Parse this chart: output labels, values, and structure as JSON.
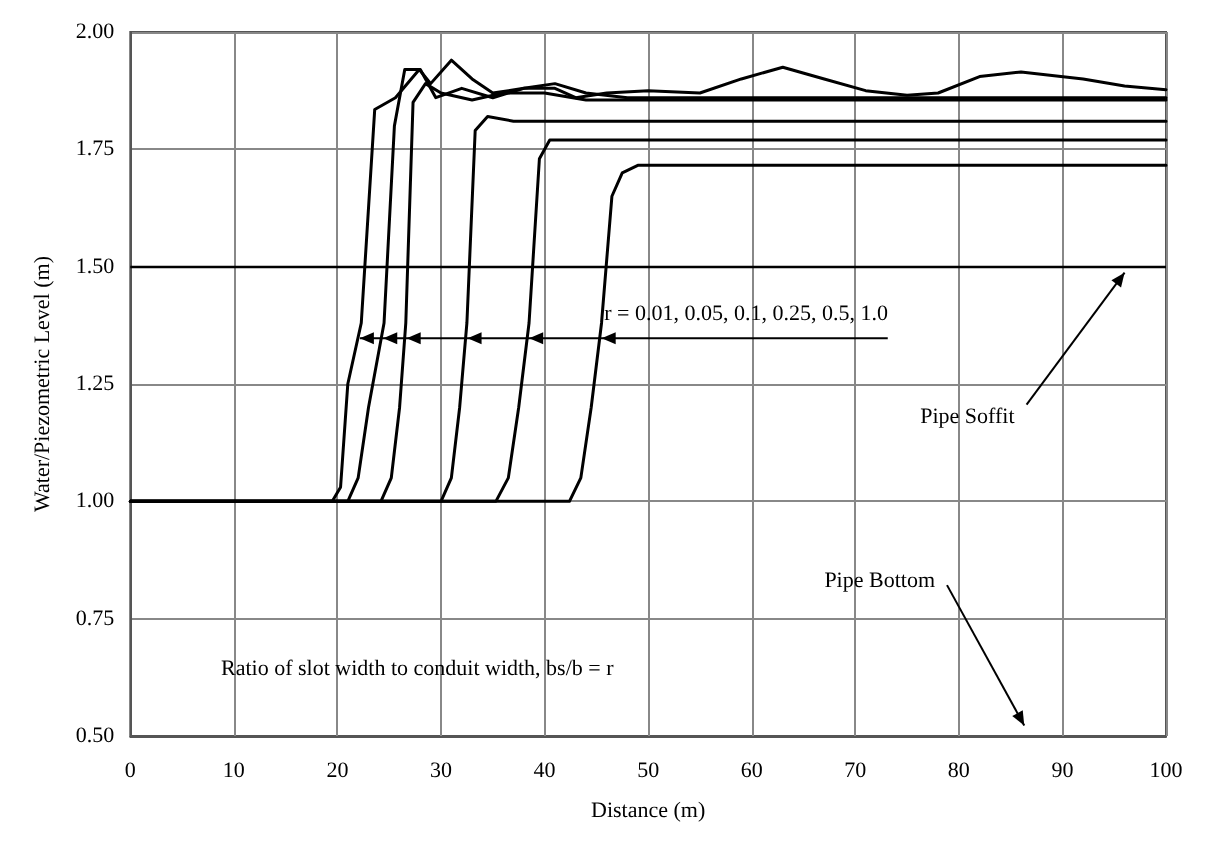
{
  "chart_data": {
    "type": "line",
    "xlabel": "Distance (m)",
    "ylabel": "Water/Piezometric Level (m)",
    "xlim": [
      0,
      100
    ],
    "xticks": [
      0,
      10,
      20,
      30,
      40,
      50,
      60,
      70,
      80,
      90,
      100
    ],
    "ylim": [
      0.5,
      2.0
    ],
    "yticks": [
      {
        "value": 0.5,
        "label": "0.50"
      },
      {
        "value": 0.75,
        "label": "0.75"
      },
      {
        "value": 1.0,
        "label": "1.00"
      },
      {
        "value": 1.25,
        "label": "1.25"
      },
      {
        "value": 1.5,
        "label": "1.50"
      },
      {
        "value": 1.75,
        "label": "1.75"
      },
      {
        "value": 2.0,
        "label": "2.00"
      }
    ],
    "grid": true,
    "marker": "none",
    "line_style": "solid",
    "ref_lines": [
      {
        "axis": "y",
        "value": 1.5,
        "color": "#000000"
      }
    ],
    "series": [
      {
        "color": "#000000",
        "x": [
          0,
          19.5,
          20.3,
          21,
          22.3,
          23.6,
          25.6,
          27.9,
          29,
          31,
          33,
          35,
          38,
          41,
          43,
          46,
          50,
          55,
          59,
          63,
          67,
          71,
          75,
          78,
          82,
          86,
          92,
          96,
          100
        ],
        "values": [
          1,
          1,
          1.03,
          1.25,
          1.38,
          1.835,
          1.86,
          1.92,
          1.89,
          1.94,
          1.9,
          1.87,
          1.88,
          1.88,
          1.86,
          1.87,
          1.875,
          1.87,
          1.9,
          1.925,
          1.9,
          1.875,
          1.865,
          1.87,
          1.905,
          1.915,
          1.9,
          1.885,
          1.877
        ]
      },
      {
        "color": "#000000",
        "x": [
          0,
          21,
          22,
          23,
          24.5,
          25.5,
          26.5,
          28,
          29.5,
          32,
          35,
          38,
          41,
          44,
          48,
          100
        ],
        "values": [
          1,
          1,
          1.05,
          1.2,
          1.38,
          1.8,
          1.92,
          1.92,
          1.86,
          1.88,
          1.86,
          1.88,
          1.89,
          1.87,
          1.86,
          1.86
        ]
      },
      {
        "color": "#000000",
        "x": [
          0,
          24.2,
          25.2,
          26,
          26.6,
          27.3,
          28.5,
          30,
          33,
          36,
          40,
          44,
          100
        ],
        "values": [
          1,
          1,
          1.05,
          1.2,
          1.38,
          1.85,
          1.89,
          1.87,
          1.855,
          1.87,
          1.87,
          1.855,
          1.855
        ]
      },
      {
        "color": "#000000",
        "x": [
          0,
          30,
          31,
          31.8,
          32.5,
          33.3,
          34.5,
          37,
          100
        ],
        "values": [
          1,
          1,
          1.05,
          1.2,
          1.38,
          1.79,
          1.82,
          1.81,
          1.81
        ]
      },
      {
        "color": "#000000",
        "x": [
          0,
          35.3,
          36.5,
          37.5,
          38.5,
          39.5,
          40.5,
          100
        ],
        "values": [
          1,
          1,
          1.05,
          1.2,
          1.38,
          1.73,
          1.77,
          1.77
        ]
      },
      {
        "color": "#000000",
        "x": [
          0,
          42.4,
          43.5,
          44.5,
          45.5,
          46.5,
          47.5,
          49,
          100
        ],
        "values": [
          1,
          1,
          1.05,
          1.2,
          1.38,
          1.65,
          1.7,
          1.716,
          1.716
        ]
      }
    ],
    "annotations": [
      "r = 0.01, 0.05, 0.1, 0.25, 0.5, 1.0",
      {
        "text": "Pipe Soffit",
        "x": 96,
        "y": 1.5
      },
      "Pipe Bottom",
      "Ratio of slot width to conduit width, bs/b = r"
    ]
  }
}
